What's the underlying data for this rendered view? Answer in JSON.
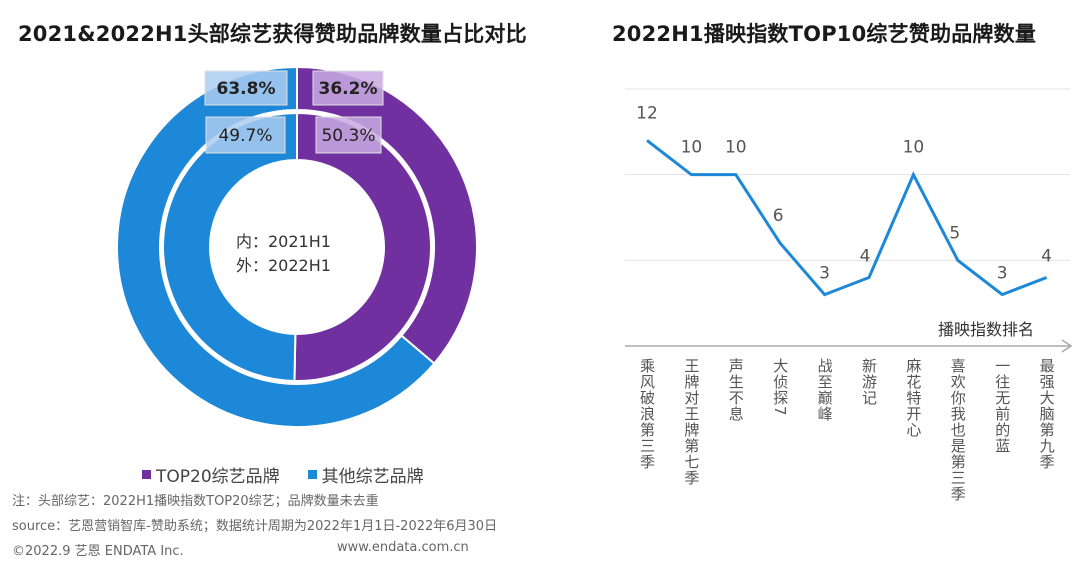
{
  "chart_data": [
    {
      "type": "pie",
      "subtype": "double-donut",
      "title": "2021&2022H1头部综艺获得赞助品牌数量占比对比",
      "center_label": [
        "内：2021H1",
        "外：2022H1"
      ],
      "legend": [
        {
          "name": "TOP20综艺品牌",
          "color": "#7030A0"
        },
        {
          "name": "其他综艺品牌",
          "color": "#1E88D8"
        }
      ],
      "legend_position": "bottom",
      "rings": [
        {
          "name": "2022H1",
          "position": "outer",
          "slices": [
            {
              "label": "TOP20综艺品牌",
              "value": 36.2,
              "display": "36.2%"
            },
            {
              "label": "其他综艺品牌",
              "value": 63.8,
              "display": "63.8%"
            }
          ]
        },
        {
          "name": "2021H1",
          "position": "inner",
          "slices": [
            {
              "label": "TOP20综艺品牌",
              "value": 50.3,
              "display": "50.3%"
            },
            {
              "label": "其他综艺品牌",
              "value": 49.7,
              "display": "49.7%"
            }
          ]
        }
      ]
    },
    {
      "type": "line",
      "title": "2022H1播映指数TOP10综艺赞助品牌数量",
      "xlabel": "播映指数排名",
      "ylabel": "",
      "categories": [
        "乘风破浪第三季",
        "王牌对王牌第七季",
        "声生不息",
        "大侦探7",
        "战至巅峰",
        "新游记",
        "麻花特开心",
        "喜欢你我也是第三季",
        "一往无前的蓝",
        "最强大脑第九季"
      ],
      "series": [
        {
          "name": "赞助品牌数量",
          "values": [
            12,
            10,
            10,
            6,
            3,
            4,
            10,
            5,
            3,
            4
          ],
          "color": "#1E88D8"
        }
      ],
      "ylim": [
        0,
        15
      ],
      "gridlines": [
        5,
        10,
        15
      ],
      "grid": true,
      "y_axis_visible": false,
      "data_labels": true
    }
  ],
  "footer": {
    "legend_note": "注：头部综艺：2022H1播映指数TOP20综艺；品牌数量未去重",
    "source": "source：艺恩营销智库-赞助系统；数据统计周期为2022年1月1日-2022年6月30日",
    "copyright": "©2022.9 艺恩 ENDATA Inc.",
    "website": "www.endata.com.cn"
  }
}
